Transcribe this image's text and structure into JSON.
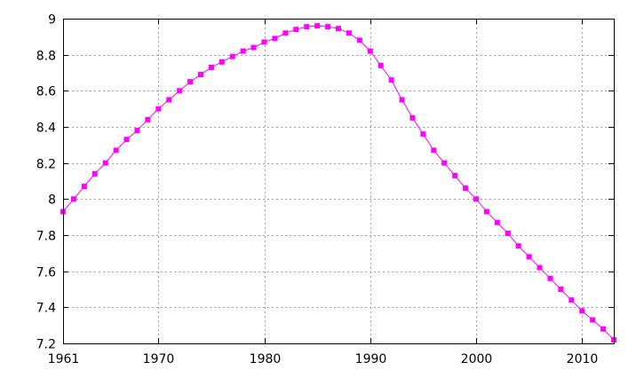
{
  "chart_data": {
    "type": "line",
    "title": "",
    "xlabel": "",
    "ylabel": "",
    "xlim": [
      1961,
      2013
    ],
    "ylim": [
      7.2,
      9
    ],
    "grid": true,
    "legend": "none",
    "x_ticks": [
      1961,
      1970,
      1980,
      1990,
      2000,
      2010
    ],
    "x_tick_labels": [
      "1961",
      "1970",
      "1980",
      "1990",
      "2000",
      "2010"
    ],
    "y_ticks": [
      7.2,
      7.4,
      7.6,
      7.8,
      8,
      8.2,
      8.4,
      8.6,
      8.8,
      9
    ],
    "y_tick_labels": [
      "7.2",
      "7.4",
      "7.6",
      "7.8",
      "8",
      "8.2",
      "8.4",
      "8.6",
      "8.8",
      "9"
    ],
    "series": [
      {
        "color": "#ff00ff",
        "marker": "square",
        "x": [
          1961,
          1962,
          1963,
          1964,
          1965,
          1966,
          1967,
          1968,
          1969,
          1970,
          1971,
          1972,
          1973,
          1974,
          1975,
          1976,
          1977,
          1978,
          1979,
          1980,
          1981,
          1982,
          1983,
          1984,
          1985,
          1986,
          1987,
          1988,
          1989,
          1990,
          1991,
          1992,
          1993,
          1994,
          1995,
          1996,
          1997,
          1998,
          1999,
          2000,
          2001,
          2002,
          2003,
          2004,
          2005,
          2006,
          2007,
          2008,
          2009,
          2010,
          2011,
          2012,
          2013
        ],
        "values": [
          7.93,
          8.0,
          8.07,
          8.14,
          8.2,
          8.27,
          8.33,
          8.38,
          8.44,
          8.5,
          8.55,
          8.6,
          8.65,
          8.69,
          8.73,
          8.76,
          8.79,
          8.82,
          8.84,
          8.87,
          8.89,
          8.92,
          8.94,
          8.955,
          8.96,
          8.955,
          8.945,
          8.92,
          8.88,
          8.82,
          8.74,
          8.66,
          8.55,
          8.45,
          8.36,
          8.27,
          8.2,
          8.13,
          8.06,
          8.0,
          7.93,
          7.87,
          7.81,
          7.74,
          7.68,
          7.62,
          7.56,
          7.5,
          7.44,
          7.38,
          7.33,
          7.28,
          7.22
        ]
      }
    ]
  }
}
